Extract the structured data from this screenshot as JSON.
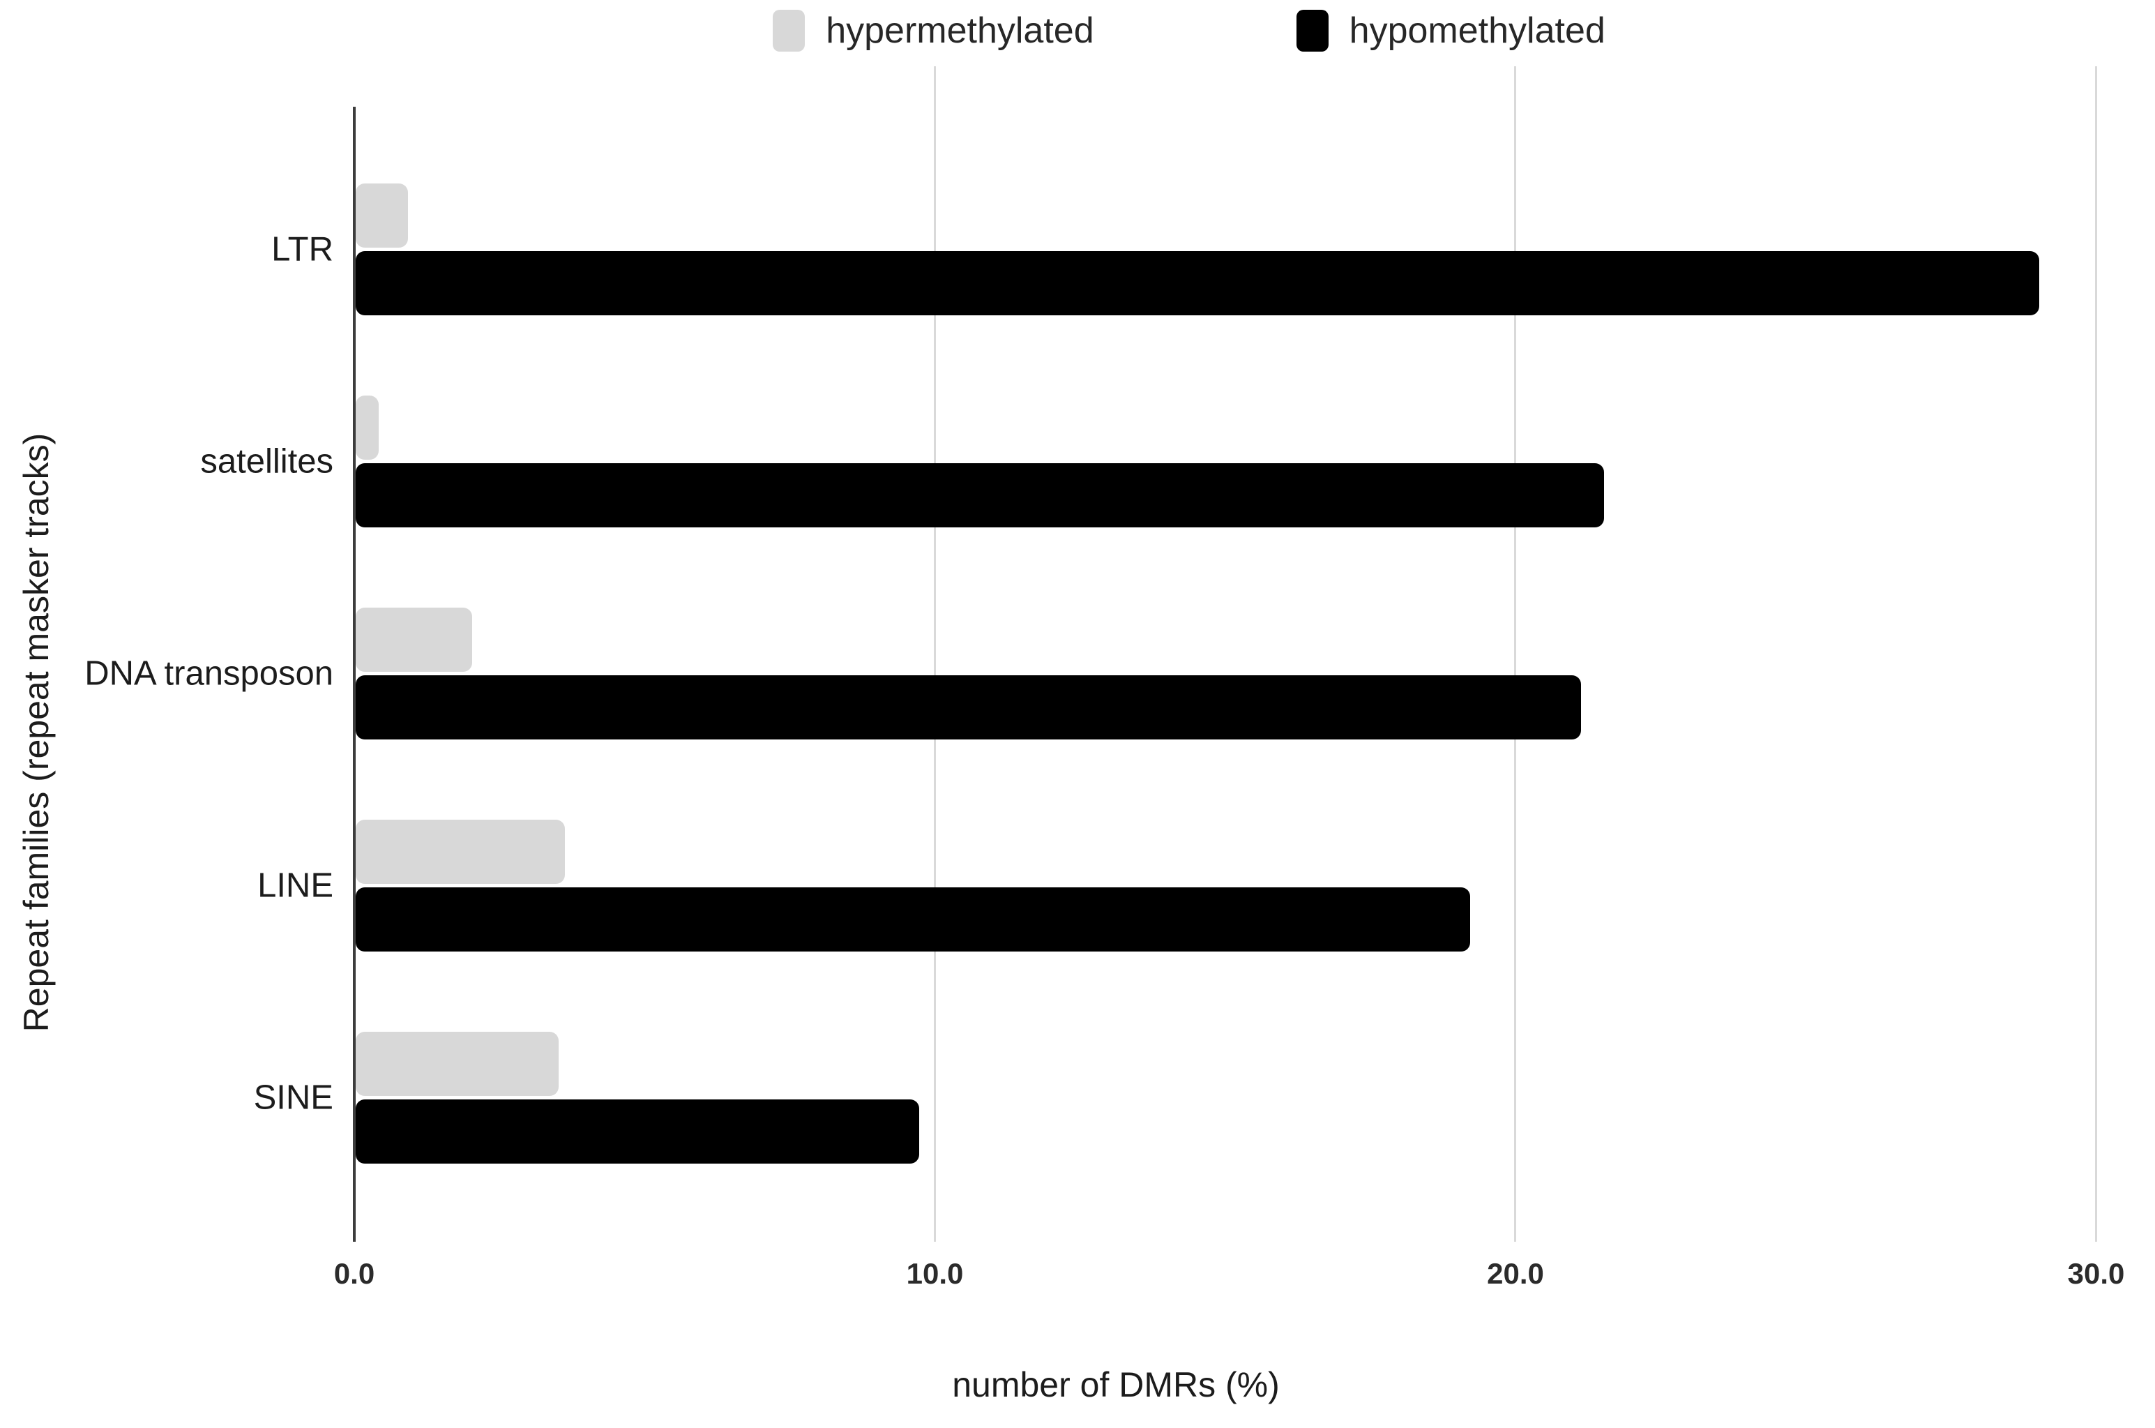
{
  "legend": {
    "items": [
      {
        "label": "hypermethylated",
        "color": "#d8d8d8"
      },
      {
        "label": "hypomethylated",
        "color": "#000000"
      }
    ]
  },
  "chart_data": {
    "type": "bar",
    "orientation": "horizontal",
    "title": "",
    "xlabel": "number of DMRs (%)",
    "ylabel": "Repeat families (repeat masker tracks)",
    "categories": [
      "LTR",
      "satellites",
      "DNA transposon",
      "LINE",
      "SINE"
    ],
    "series": [
      {
        "name": "hypermethylated",
        "color": "#d8d8d8",
        "values": [
          0.9,
          0.4,
          2.0,
          3.6,
          3.5
        ]
      },
      {
        "name": "hypomethylated",
        "color": "#000000",
        "values": [
          29.0,
          21.5,
          21.1,
          19.2,
          9.7
        ]
      }
    ],
    "xlim": [
      0,
      31
    ],
    "x_tick_values": [
      0,
      10,
      20,
      30
    ],
    "x_tick_labels": [
      "0.0",
      "10.0",
      "20.0",
      "30.0"
    ],
    "grid": "vertical-light-gridlines-at-10-20-30",
    "legend_position": "top-center",
    "gridline_color": "#d9d9d9",
    "axis_line_color": "#3d3d3d"
  }
}
